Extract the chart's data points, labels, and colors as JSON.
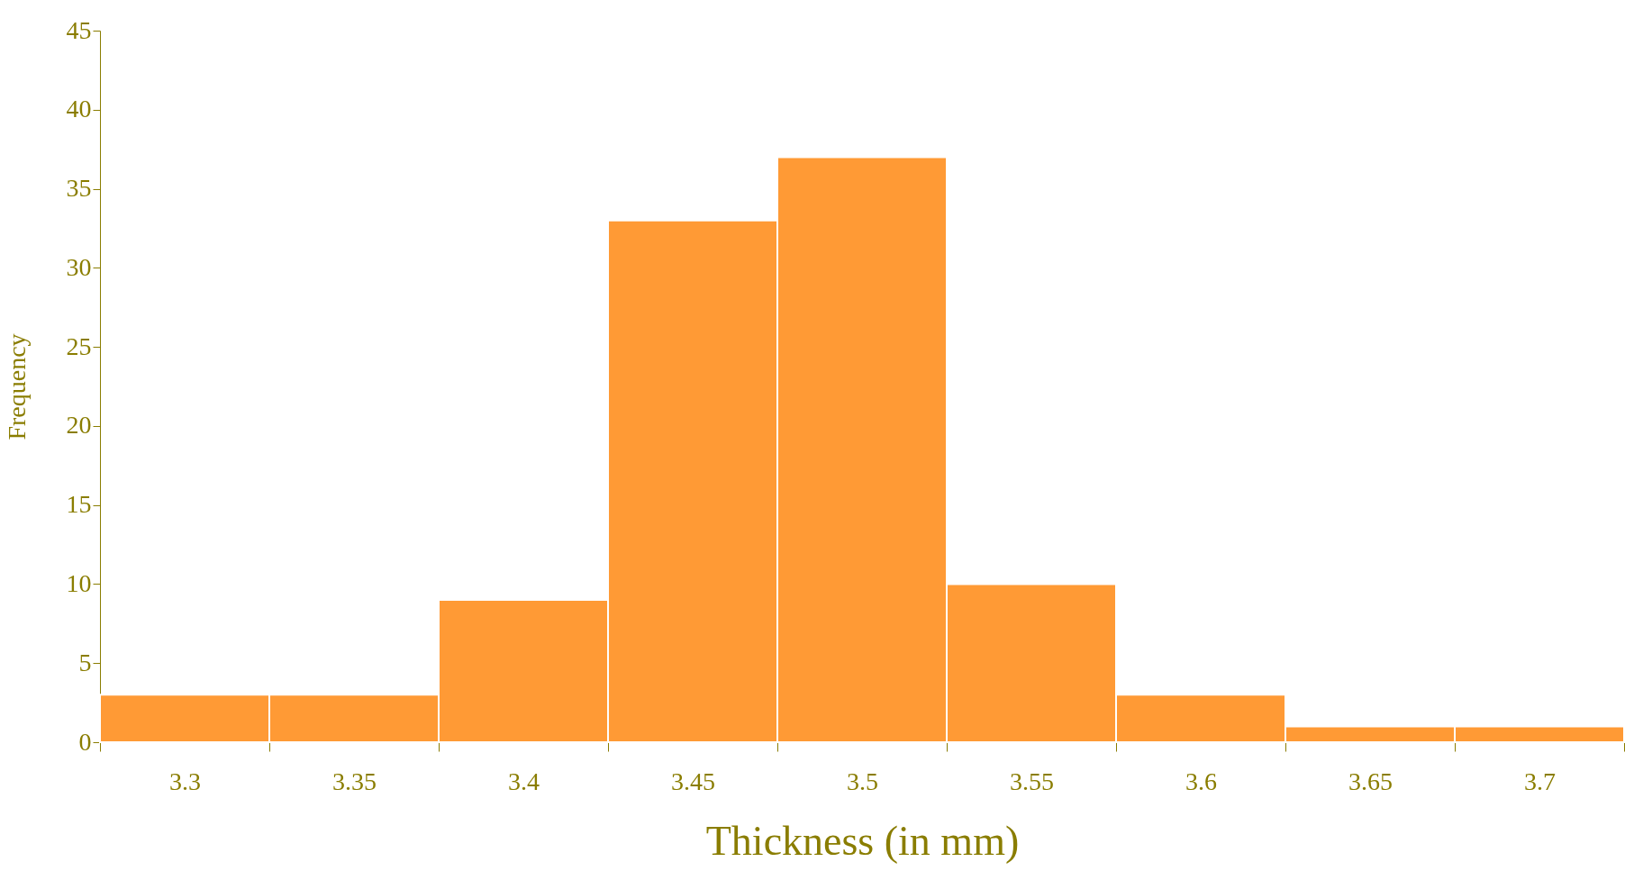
{
  "chart_data": {
    "type": "histogram",
    "xlabel": "Thickness (in mm)",
    "ylabel": "Frequency",
    "bins": [
      3.275,
      3.325,
      3.375,
      3.425,
      3.475,
      3.525,
      3.575,
      3.625,
      3.675,
      3.725
    ],
    "values": [
      3,
      3,
      9,
      33,
      37,
      10,
      3,
      1,
      1
    ],
    "color": "#ff9a35",
    "xlim": [
      3.275,
      3.725
    ],
    "xticks": [
      {
        "value": 3.275,
        "label": null
      },
      {
        "value": 3.3,
        "label": "3.3"
      },
      {
        "value": 3.325,
        "label": null
      },
      {
        "value": 3.35,
        "label": "3.35"
      },
      {
        "value": 3.375,
        "label": null
      },
      {
        "value": 3.4,
        "label": "3.4"
      },
      {
        "value": 3.425,
        "label": null
      },
      {
        "value": 3.45,
        "label": "3.45"
      },
      {
        "value": 3.475,
        "label": null
      },
      {
        "value": 3.5,
        "label": "3.5"
      },
      {
        "value": 3.525,
        "label": null
      },
      {
        "value": 3.55,
        "label": "3.55"
      },
      {
        "value": 3.575,
        "label": null
      },
      {
        "value": 3.6,
        "label": "3.6"
      },
      {
        "value": 3.625,
        "label": null
      },
      {
        "value": 3.65,
        "label": "3.65"
      },
      {
        "value": 3.675,
        "label": null
      },
      {
        "value": 3.7,
        "label": "3.7"
      },
      {
        "value": 3.725,
        "label": null
      }
    ],
    "ylim": [
      0,
      45
    ],
    "yticks": [
      0,
      5,
      10,
      15,
      20,
      25,
      30,
      35,
      40,
      45
    ],
    "grid": false
  }
}
